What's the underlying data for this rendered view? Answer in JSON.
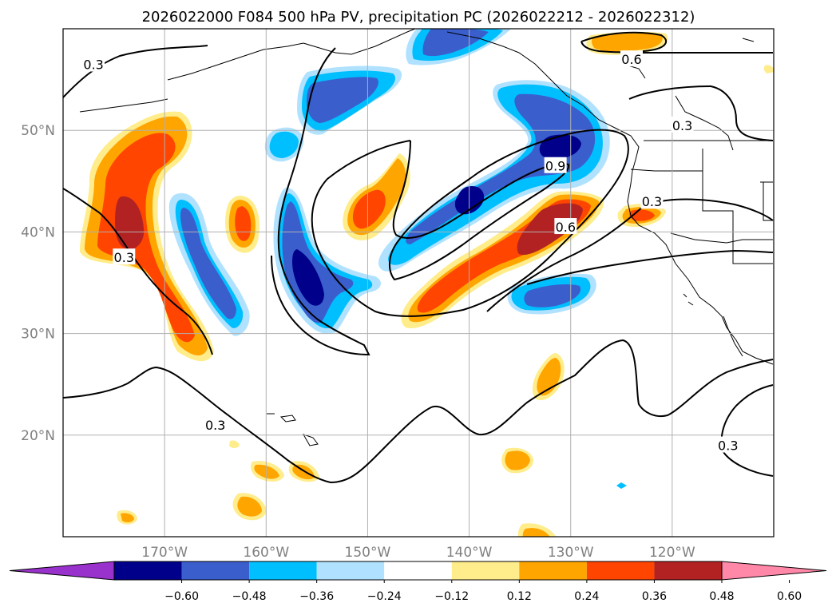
{
  "title": "2026022000 F084 500 hPa PV, precipitation PC (2026022212 - 2026022312)",
  "map": {
    "lon_range": [
      -180,
      -110
    ],
    "lat_range": [
      10,
      60
    ],
    "gridlines": true,
    "lon_ticks": [
      {
        "lon": -170,
        "label": "170°W"
      },
      {
        "lon": -160,
        "label": "160°W"
      },
      {
        "lon": -150,
        "label": "150°W"
      },
      {
        "lon": -140,
        "label": "140°W"
      },
      {
        "lon": -130,
        "label": "130°W"
      },
      {
        "lon": -120,
        "label": "120°W"
      }
    ],
    "lat_ticks": [
      {
        "lat": 50,
        "label": "50°N"
      },
      {
        "lat": 40,
        "label": "40°N"
      },
      {
        "lat": 30,
        "label": "30°N"
      },
      {
        "lat": 20,
        "label": "20°N"
      }
    ],
    "contour_labels": [
      {
        "text": "0.3",
        "lon": -177,
        "lat": 56.5
      },
      {
        "text": "0.6",
        "lon": -124,
        "lat": 57
      },
      {
        "text": "0.3",
        "lon": -119,
        "lat": 50.5
      },
      {
        "text": "0.9",
        "lon": -131.5,
        "lat": 46.5
      },
      {
        "text": "0.6",
        "lon": -130.5,
        "lat": 40.5
      },
      {
        "text": "0.3",
        "lon": -122,
        "lat": 43
      },
      {
        "text": "0.3",
        "lon": -174,
        "lat": 37.5
      },
      {
        "text": "0.3",
        "lon": -165,
        "lat": 21
      },
      {
        "text": "0.3",
        "lon": -114.5,
        "lat": 19
      }
    ]
  },
  "colorbar": {
    "levels": [
      -0.6,
      -0.48,
      -0.36,
      -0.24,
      -0.12,
      0.12,
      0.24,
      0.36,
      0.48,
      0.6
    ],
    "tick_labels": [
      "−0.60",
      "−0.48",
      "−0.36",
      "−0.24",
      "−0.12",
      "0.12",
      "0.24",
      "0.36",
      "0.48",
      "0.60"
    ],
    "colors": [
      "#9932cc",
      "#00008b",
      "#3a5fcd",
      "#00bfff",
      "#b0e2ff",
      "#ffffff",
      "#ffec8b",
      "#ffa500",
      "#ff4500",
      "#b22222",
      "#ff88a8"
    ],
    "extend": "both"
  }
}
